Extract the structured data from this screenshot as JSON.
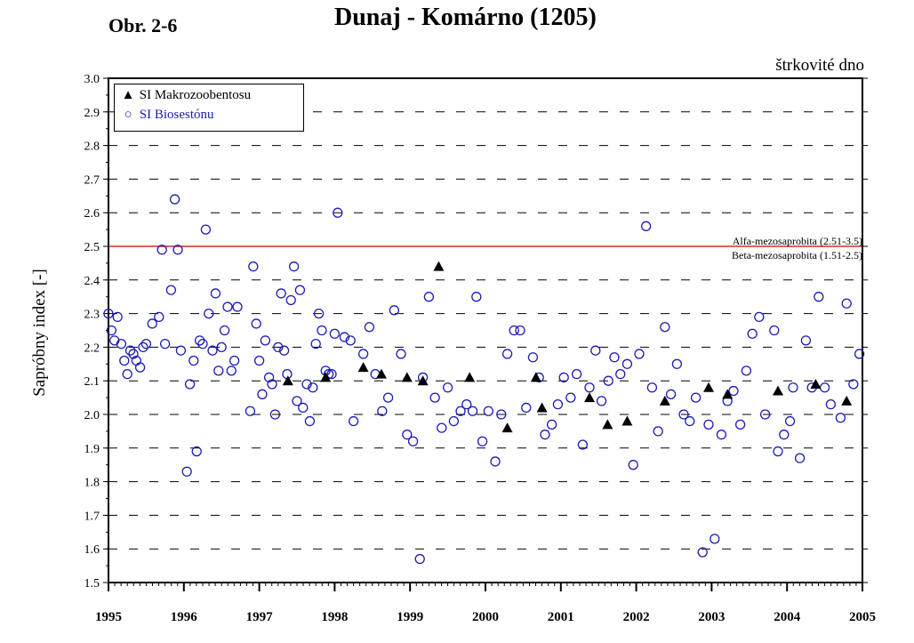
{
  "figure_label": "Obr. 2-6",
  "substrate_note": "štrkovité dno",
  "colors": {
    "biosesten": "#1c1cb4",
    "makro": "#000000",
    "threshold": "#cc0000",
    "grid": "#000000"
  },
  "chart_data": {
    "type": "scatter",
    "title": "Dunaj - Komárno (1205)",
    "xlabel": "",
    "ylabel": "Sapróbny index [-]",
    "xlim": [
      1995,
      2005
    ],
    "ylim": [
      1.5,
      3.0
    ],
    "xticks": [
      "1995",
      "1996",
      "1997",
      "1998",
      "1999",
      "2000",
      "2001",
      "2002",
      "2003",
      "2004",
      "2005"
    ],
    "yticks": [
      "1.5",
      "1.6",
      "1.7",
      "1.8",
      "1.9",
      "2.0",
      "2.1",
      "2.2",
      "2.3",
      "2.4",
      "2.5",
      "2.6",
      "2.7",
      "2.8",
      "2.9",
      "3.0"
    ],
    "grid": "dashed horizontal",
    "legend_position": "top-left",
    "threshold": {
      "y": 2.5,
      "label_upper": "Alfa-mezosaprobita (2.51-3.5)",
      "label_lower": "Beta-mezosaprobita (1.51-2.5)"
    },
    "series": [
      {
        "name": "SI Makrozoobentosu",
        "marker": "triangle",
        "points": [
          [
            1997.38,
            2.1
          ],
          [
            1997.88,
            2.11
          ],
          [
            1998.38,
            2.14
          ],
          [
            1998.62,
            2.12
          ],
          [
            1998.96,
            2.11
          ],
          [
            1999.17,
            2.1
          ],
          [
            1999.38,
            2.44
          ],
          [
            1999.79,
            2.11
          ],
          [
            2000.29,
            1.96
          ],
          [
            2000.67,
            2.11
          ],
          [
            2000.75,
            2.02
          ],
          [
            2001.38,
            2.05
          ],
          [
            2001.62,
            1.97
          ],
          [
            2001.88,
            1.98
          ],
          [
            2002.38,
            2.04
          ],
          [
            2002.96,
            2.08
          ],
          [
            2003.21,
            2.06
          ],
          [
            2003.88,
            2.07
          ],
          [
            2004.38,
            2.09
          ],
          [
            2004.79,
            2.04
          ]
        ]
      },
      {
        "name": "SI Biosestónu",
        "marker": "circle",
        "points": [
          [
            1995.0,
            2.3
          ],
          [
            1995.04,
            2.25
          ],
          [
            1995.08,
            2.22
          ],
          [
            1995.12,
            2.29
          ],
          [
            1995.17,
            2.21
          ],
          [
            1995.21,
            2.16
          ],
          [
            1995.25,
            2.12
          ],
          [
            1995.29,
            2.19
          ],
          [
            1995.33,
            2.18
          ],
          [
            1995.37,
            2.16
          ],
          [
            1995.42,
            2.14
          ],
          [
            1995.46,
            2.2
          ],
          [
            1995.5,
            2.21
          ],
          [
            1995.58,
            2.27
          ],
          [
            1995.67,
            2.29
          ],
          [
            1995.71,
            2.49
          ],
          [
            1995.75,
            2.21
          ],
          [
            1995.83,
            2.37
          ],
          [
            1995.88,
            2.64
          ],
          [
            1995.92,
            2.49
          ],
          [
            1995.96,
            2.19
          ],
          [
            1996.04,
            1.83
          ],
          [
            1996.08,
            2.09
          ],
          [
            1996.13,
            2.16
          ],
          [
            1996.17,
            1.89
          ],
          [
            1996.21,
            2.22
          ],
          [
            1996.25,
            2.21
          ],
          [
            1996.29,
            2.55
          ],
          [
            1996.33,
            2.3
          ],
          [
            1996.38,
            2.19
          ],
          [
            1996.42,
            2.36
          ],
          [
            1996.46,
            2.13
          ],
          [
            1996.5,
            2.2
          ],
          [
            1996.54,
            2.25
          ],
          [
            1996.58,
            2.32
          ],
          [
            1996.63,
            2.13
          ],
          [
            1996.67,
            2.16
          ],
          [
            1996.71,
            2.32
          ],
          [
            1996.88,
            2.01
          ],
          [
            1996.92,
            2.44
          ],
          [
            1996.96,
            2.27
          ],
          [
            1997.0,
            2.16
          ],
          [
            1997.04,
            2.06
          ],
          [
            1997.08,
            2.22
          ],
          [
            1997.13,
            2.11
          ],
          [
            1997.17,
            2.09
          ],
          [
            1997.21,
            2.0
          ],
          [
            1997.25,
            2.2
          ],
          [
            1997.29,
            2.36
          ],
          [
            1997.33,
            2.19
          ],
          [
            1997.37,
            2.12
          ],
          [
            1997.42,
            2.34
          ],
          [
            1997.46,
            2.44
          ],
          [
            1997.5,
            2.04
          ],
          [
            1997.54,
            2.37
          ],
          [
            1997.58,
            2.02
          ],
          [
            1997.63,
            2.09
          ],
          [
            1997.67,
            1.98
          ],
          [
            1997.71,
            2.08
          ],
          [
            1997.75,
            2.21
          ],
          [
            1997.79,
            2.3
          ],
          [
            1997.83,
            2.25
          ],
          [
            1997.88,
            2.13
          ],
          [
            1997.92,
            2.12
          ],
          [
            1997.96,
            2.12
          ],
          [
            1998.0,
            2.24
          ],
          [
            1998.04,
            2.6
          ],
          [
            1998.13,
            2.23
          ],
          [
            1998.21,
            2.22
          ],
          [
            1998.25,
            1.98
          ],
          [
            1998.38,
            2.18
          ],
          [
            1998.46,
            2.26
          ],
          [
            1998.54,
            2.12
          ],
          [
            1998.63,
            2.01
          ],
          [
            1998.71,
            2.05
          ],
          [
            1998.79,
            2.31
          ],
          [
            1998.88,
            2.18
          ],
          [
            1998.96,
            1.94
          ],
          [
            1999.04,
            1.92
          ],
          [
            1999.13,
            1.57
          ],
          [
            1999.17,
            2.11
          ],
          [
            1999.25,
            2.35
          ],
          [
            1999.33,
            2.05
          ],
          [
            1999.42,
            1.96
          ],
          [
            1999.5,
            2.08
          ],
          [
            1999.58,
            1.98
          ],
          [
            1999.67,
            2.01
          ],
          [
            1999.75,
            2.03
          ],
          [
            1999.83,
            2.01
          ],
          [
            1999.88,
            2.35
          ],
          [
            1999.96,
            1.92
          ],
          [
            2000.04,
            2.01
          ],
          [
            2000.13,
            1.86
          ],
          [
            2000.21,
            2.0
          ],
          [
            2000.29,
            2.18
          ],
          [
            2000.38,
            2.25
          ],
          [
            2000.46,
            2.25
          ],
          [
            2000.54,
            2.02
          ],
          [
            2000.63,
            2.17
          ],
          [
            2000.71,
            2.11
          ],
          [
            2000.79,
            1.94
          ],
          [
            2000.88,
            1.97
          ],
          [
            2000.96,
            2.03
          ],
          [
            2001.04,
            2.11
          ],
          [
            2001.13,
            2.05
          ],
          [
            2001.21,
            2.12
          ],
          [
            2001.29,
            1.91
          ],
          [
            2001.38,
            2.08
          ],
          [
            2001.46,
            2.19
          ],
          [
            2001.54,
            2.04
          ],
          [
            2001.63,
            2.1
          ],
          [
            2001.71,
            2.17
          ],
          [
            2001.79,
            2.12
          ],
          [
            2001.88,
            2.15
          ],
          [
            2001.96,
            1.85
          ],
          [
            2002.04,
            2.18
          ],
          [
            2002.13,
            2.56
          ],
          [
            2002.21,
            2.08
          ],
          [
            2002.29,
            1.95
          ],
          [
            2002.38,
            2.26
          ],
          [
            2002.46,
            2.06
          ],
          [
            2002.54,
            2.15
          ],
          [
            2002.63,
            2.0
          ],
          [
            2002.71,
            1.98
          ],
          [
            2002.79,
            2.05
          ],
          [
            2002.88,
            1.59
          ],
          [
            2002.96,
            1.97
          ],
          [
            2003.04,
            1.63
          ],
          [
            2003.13,
            1.94
          ],
          [
            2003.21,
            2.04
          ],
          [
            2003.29,
            2.07
          ],
          [
            2003.38,
            1.97
          ],
          [
            2003.46,
            2.13
          ],
          [
            2003.54,
            2.24
          ],
          [
            2003.63,
            2.29
          ],
          [
            2003.71,
            2.0
          ],
          [
            2003.83,
            2.25
          ],
          [
            2003.88,
            1.89
          ],
          [
            2003.96,
            1.94
          ],
          [
            2004.04,
            1.98
          ],
          [
            2004.08,
            2.08
          ],
          [
            2004.17,
            1.87
          ],
          [
            2004.25,
            2.22
          ],
          [
            2004.33,
            2.08
          ],
          [
            2004.42,
            2.35
          ],
          [
            2004.5,
            2.08
          ],
          [
            2004.58,
            2.03
          ],
          [
            2004.71,
            1.99
          ],
          [
            2004.79,
            2.33
          ],
          [
            2004.88,
            2.09
          ],
          [
            2004.96,
            2.18
          ]
        ]
      }
    ]
  }
}
